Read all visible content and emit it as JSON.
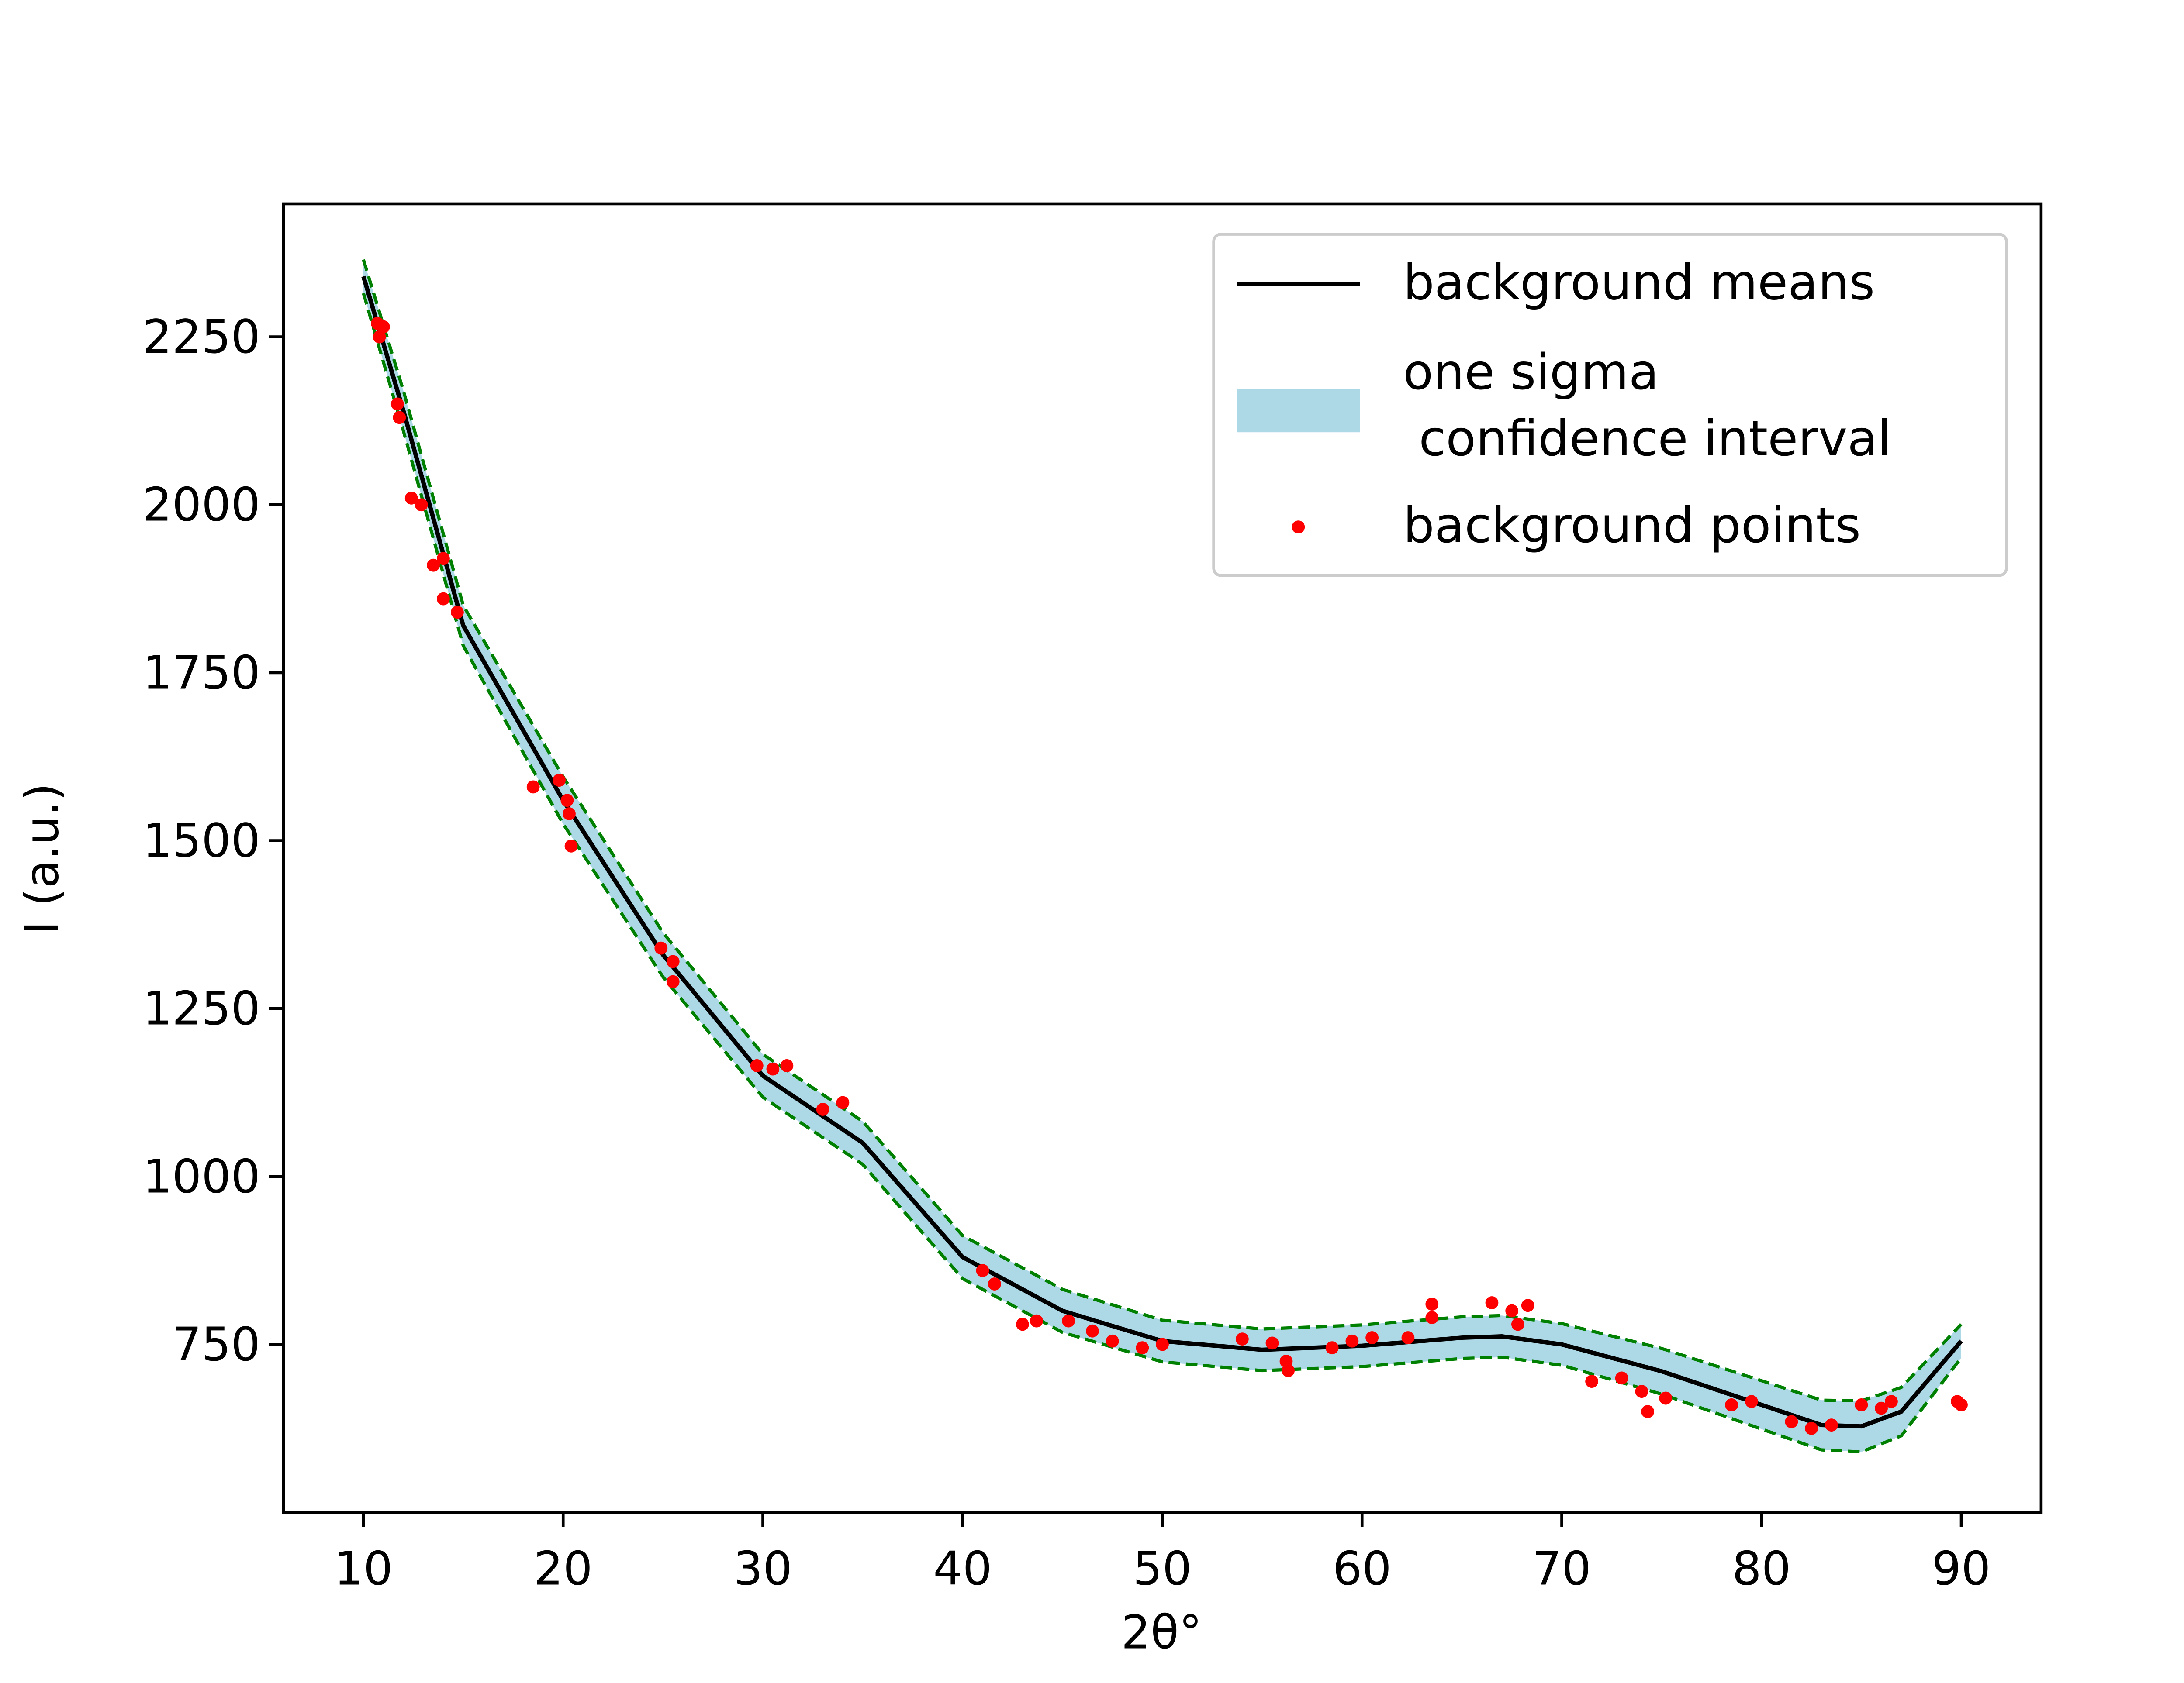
{
  "chart_data": {
    "type": "line",
    "x_label": "2θ°",
    "y_label": "I (a.u.)",
    "xlim": [
      6,
      94
    ],
    "ylim": [
      500,
      2448
    ],
    "xticks": [
      10,
      20,
      30,
      40,
      50,
      60,
      70,
      80,
      90
    ],
    "yticks": [
      750,
      1000,
      1250,
      1500,
      1750,
      2000,
      2250
    ],
    "x": [
      10,
      12,
      15,
      20,
      25,
      30,
      35,
      40,
      45,
      50,
      55,
      60,
      65,
      67,
      70,
      75,
      80,
      83,
      85,
      87,
      90
    ],
    "series": [
      {
        "name": "background means",
        "color": "#000000",
        "values": [
          2340,
          2140,
          1820,
          1560,
          1330,
          1150,
          1050,
          880,
          800,
          755,
          742,
          748,
          760,
          762,
          750,
          710,
          660,
          630,
          628,
          650,
          755
        ]
      },
      {
        "name": "one sigma\n confidence interval",
        "color": "#add8e6",
        "edge_color": "#008000",
        "lower": [
          2315,
          2110,
          1790,
          1525,
          1297,
          1118,
          1018,
          848,
          768,
          724,
          711,
          717,
          729,
          731,
          719,
          676,
          624,
          593,
          590,
          614,
          730
        ],
        "upper": [
          2365,
          2170,
          1850,
          1595,
          1363,
          1182,
          1082,
          912,
          832,
          786,
          773,
          779,
          791,
          793,
          781,
          744,
          696,
          667,
          666,
          686,
          780
        ]
      },
      {
        "name": "background points",
        "color": "#ff0000",
        "type": "scatter",
        "x": [
          10.7,
          10.8,
          11.0,
          11.7,
          11.8,
          12.4,
          12.9,
          13.5,
          14.0,
          14.0,
          14.7,
          18.5,
          19.8,
          20.2,
          20.3,
          20.4,
          24.9,
          25.5,
          25.5,
          29.7,
          30.5,
          31.2,
          33.0,
          34.0,
          41.0,
          41.6,
          43.0,
          43.7,
          45.3,
          46.5,
          47.5,
          49.0,
          50.0,
          54.0,
          55.5,
          56.2,
          56.3,
          58.5,
          59.5,
          60.5,
          62.3,
          63.5,
          63.5,
          66.5,
          67.5,
          68.3,
          67.8,
          71.5,
          73.0,
          74.0,
          74.3,
          75.2,
          78.5,
          79.5,
          81.5,
          82.5,
          83.5,
          85.0,
          86.0,
          86.5,
          89.8,
          90.0
        ],
        "values": [
          2270,
          2250,
          2265,
          2150,
          2130,
          2010,
          2000,
          1910,
          1920,
          1860,
          1840,
          1580,
          1590,
          1560,
          1540,
          1492,
          1340,
          1320,
          1290,
          1165,
          1160,
          1165,
          1100,
          1110,
          860,
          840,
          780,
          785,
          785,
          770,
          755,
          745,
          750,
          758,
          752,
          725,
          711,
          745,
          755,
          760,
          760,
          810,
          790,
          812,
          800,
          808,
          780,
          695,
          700,
          680,
          650,
          670,
          660,
          665,
          635,
          625,
          630,
          660,
          655,
          665,
          665,
          660
        ]
      }
    ]
  }
}
